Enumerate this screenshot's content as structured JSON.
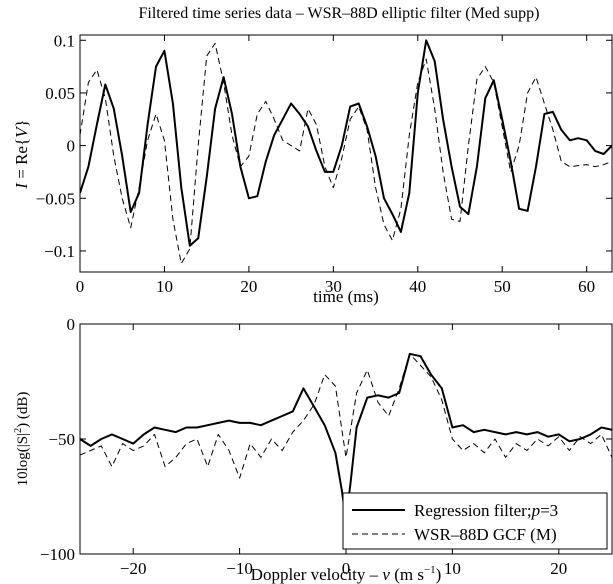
{
  "chart_data": [
    {
      "type": "line",
      "title": "Filtered time series data – WSR–88D elliptic filter (Med supp)",
      "xlabel": "time (ms)",
      "ylabel_parts": [
        "I",
        " = Re{",
        "V",
        "}"
      ],
      "xlim": [
        0,
        63
      ],
      "ylim": [
        -0.12,
        0.105
      ],
      "xticks": [
        0,
        10,
        20,
        30,
        40,
        50,
        60
      ],
      "xtick_labels": [
        "0",
        "10",
        "20",
        "30",
        "40",
        "50",
        "60"
      ],
      "yticks": [
        -0.1,
        -0.05,
        0,
        0.05,
        0.1
      ],
      "ytick_labels": [
        "−0.1",
        "−0.05",
        "0",
        "0.05",
        "0.1"
      ],
      "grid": false,
      "series": [
        {
          "style": "solid",
          "x": [
            0,
            1,
            2,
            3,
            4,
            5,
            6,
            7,
            8,
            9,
            10,
            11,
            12,
            13,
            14,
            15,
            16,
            17,
            18,
            19,
            20,
            21,
            22,
            23,
            24,
            25,
            26,
            27,
            28,
            29,
            30,
            31,
            32,
            33,
            34,
            35,
            36,
            37,
            38,
            39,
            40,
            41,
            42,
            43,
            44,
            45,
            46,
            47,
            48,
            49,
            50,
            51,
            52,
            53,
            54,
            55,
            56,
            57,
            58,
            59,
            60,
            61,
            62,
            63
          ],
          "y": [
            -0.045,
            -0.02,
            0.02,
            0.058,
            0.035,
            -0.01,
            -0.063,
            -0.045,
            0.02,
            0.075,
            0.09,
            0.04,
            -0.04,
            -0.095,
            -0.088,
            -0.03,
            0.035,
            0.065,
            0.03,
            -0.02,
            -0.05,
            -0.048,
            -0.015,
            0.01,
            0.025,
            0.04,
            0.03,
            0.018,
            -0.005,
            -0.025,
            -0.025,
            0.0,
            0.037,
            0.04,
            0.018,
            -0.01,
            -0.05,
            -0.065,
            -0.082,
            -0.045,
            0.05,
            0.1,
            0.08,
            0.025,
            -0.02,
            -0.058,
            -0.065,
            -0.02,
            0.045,
            0.062,
            0.025,
            -0.015,
            -0.06,
            -0.062,
            -0.02,
            0.03,
            0.032,
            0.015,
            0.005,
            0.007,
            0.005,
            -0.005,
            -0.008,
            0.0
          ]
        },
        {
          "style": "dashed",
          "x": [
            0,
            1,
            2,
            3,
            4,
            5,
            6,
            7,
            8,
            9,
            10,
            11,
            12,
            13,
            14,
            15,
            16,
            17,
            18,
            19,
            20,
            21,
            22,
            23,
            24,
            25,
            26,
            27,
            28,
            29,
            30,
            31,
            32,
            33,
            34,
            35,
            36,
            37,
            38,
            39,
            40,
            41,
            42,
            43,
            44,
            45,
            46,
            47,
            48,
            49,
            50,
            51,
            52,
            53,
            54,
            55,
            56,
            57,
            58,
            59,
            60,
            61,
            62,
            63
          ],
          "y": [
            0.01,
            0.06,
            0.072,
            0.045,
            -0.01,
            -0.05,
            -0.078,
            -0.04,
            0.005,
            0.03,
            0.005,
            -0.07,
            -0.112,
            -0.098,
            0.0,
            0.085,
            0.097,
            0.06,
            0.01,
            -0.02,
            -0.01,
            0.03,
            0.042,
            0.025,
            0.005,
            0.0,
            -0.005,
            0.035,
            0.02,
            -0.02,
            -0.04,
            -0.012,
            0.025,
            0.037,
            0.015,
            -0.04,
            -0.075,
            -0.09,
            -0.06,
            0.01,
            0.06,
            0.082,
            0.035,
            -0.025,
            -0.07,
            -0.072,
            0.0,
            0.063,
            0.075,
            0.06,
            0.018,
            -0.025,
            0.0,
            0.05,
            0.065,
            0.04,
            0.015,
            -0.015,
            -0.02,
            -0.019,
            -0.018,
            -0.02,
            -0.018,
            -0.015
          ]
        }
      ]
    },
    {
      "type": "line",
      "title": "",
      "xlabel_parts": [
        "Doppler velocity – ",
        "v",
        " (m s",
        "−1",
        ")"
      ],
      "ylabel_parts": [
        "10log(|S|",
        "2",
        ") (dB)"
      ],
      "xlim": [
        -25,
        25
      ],
      "ylim": [
        -100,
        0
      ],
      "xticks": [
        -20,
        -10,
        0,
        10,
        20
      ],
      "xtick_labels": [
        "−20",
        "−10",
        "0",
        "10",
        "20"
      ],
      "yticks": [
        -100,
        -50,
        0
      ],
      "ytick_labels": [
        "−100",
        "−50",
        "0"
      ],
      "grid": false,
      "legend": {
        "position": "bottom-right",
        "entries": [
          {
            "style": "solid",
            "label_parts": [
              "Regression filter;",
              "p",
              "=3"
            ]
          },
          {
            "style": "dashed",
            "label_parts": [
              "WSR–88D GCF (M)"
            ]
          }
        ]
      },
      "series": [
        {
          "style": "solid",
          "x": [
            -25,
            -24,
            -23,
            -22,
            -21,
            -20,
            -19,
            -18,
            -17,
            -16,
            -15,
            -14,
            -13,
            -12,
            -11,
            -10,
            -9,
            -8,
            -7,
            -6,
            -5,
            -4,
            -3,
            -2,
            -1,
            -0.4,
            0,
            0.4,
            1,
            2,
            3,
            4,
            5,
            6,
            7,
            8,
            9,
            10,
            11,
            12,
            13,
            14,
            15,
            16,
            17,
            18,
            19,
            20,
            21,
            22,
            23,
            24,
            25
          ],
          "y": [
            -50,
            -53,
            -50,
            -48,
            -50,
            -52,
            -48,
            -45,
            -46,
            -47,
            -45,
            -45,
            -44,
            -43,
            -42,
            -43,
            -43,
            -44,
            -42,
            -40,
            -38,
            -28,
            -36,
            -44,
            -56,
            -72,
            -85,
            -70,
            -45,
            -32,
            -31,
            -32,
            -30,
            -13,
            -14,
            -22,
            -28,
            -45,
            -44,
            -47,
            -46,
            -47,
            -48,
            -47,
            -48,
            -47,
            -49,
            -48,
            -51,
            -50,
            -48,
            -45,
            -46
          ]
        },
        {
          "style": "dashed",
          "x": [
            -25,
            -24,
            -23,
            -22,
            -21,
            -20,
            -19,
            -18,
            -17,
            -16,
            -15,
            -14,
            -13,
            -12,
            -11,
            -10,
            -9,
            -8,
            -7,
            -6,
            -5,
            -4,
            -3,
            -2,
            -1,
            0,
            1,
            2,
            3,
            4,
            5,
            6,
            7,
            8,
            9,
            10,
            11,
            12,
            13,
            14,
            15,
            16,
            17,
            18,
            19,
            20,
            21,
            22,
            23,
            24,
            25
          ],
          "y": [
            -57,
            -55,
            -53,
            -62,
            -52,
            -55,
            -53,
            -48,
            -62,
            -58,
            -52,
            -50,
            -62,
            -48,
            -55,
            -67,
            -52,
            -58,
            -50,
            -55,
            -47,
            -42,
            -35,
            -22,
            -27,
            -58,
            -30,
            -20,
            -34,
            -40,
            -28,
            -13,
            -18,
            -23,
            -33,
            -50,
            -55,
            -52,
            -56,
            -50,
            -58,
            -52,
            -55,
            -50,
            -53,
            -49,
            -55,
            -49,
            -52,
            -48,
            -58
          ]
        }
      ]
    }
  ]
}
